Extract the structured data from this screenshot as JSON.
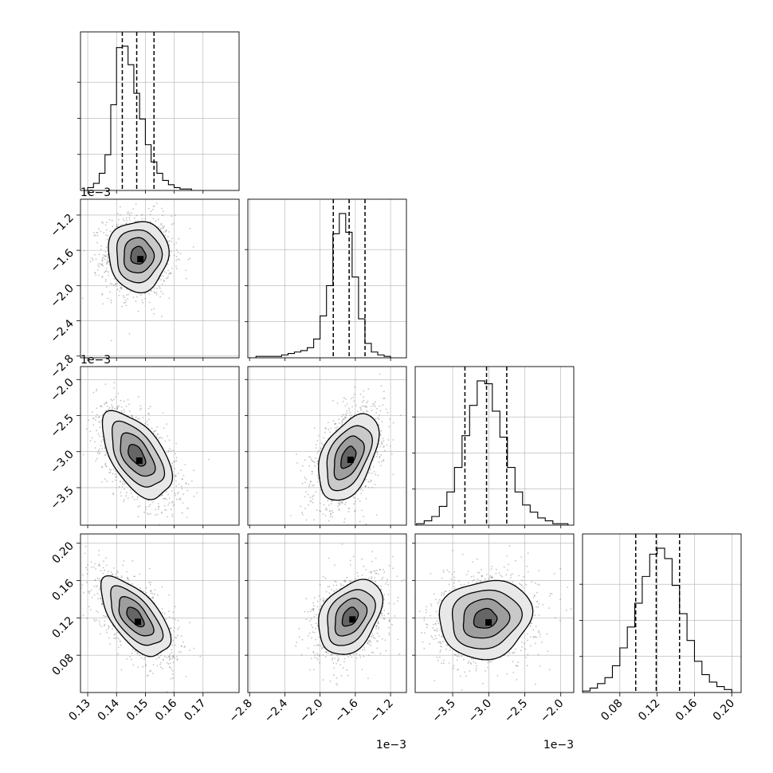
{
  "chart_data": {
    "type": "corner",
    "parameters": [
      "p0",
      "p1",
      "p2",
      "p3"
    ],
    "axis_ranges": {
      "p0": [
        0.1275,
        0.1825
      ],
      "p1": [
        -2.82,
        -1.02
      ],
      "p2": [
        -4.02,
        -1.82
      ],
      "p3": [
        0.04,
        0.21
      ]
    },
    "ticks": {
      "p0": [
        0.13,
        0.14,
        0.15,
        0.16,
        0.17
      ],
      "p1": [
        -2.8,
        -2.4,
        -2.0,
        -1.6,
        -1.2
      ],
      "p2": [
        -3.5,
        -3.0,
        -2.5,
        -2.0
      ],
      "p3": [
        0.08,
        0.12,
        0.16,
        0.2
      ]
    },
    "tick_labels": {
      "p0": [
        "0.13",
        "0.14",
        "0.15",
        "0.16",
        "0.17"
      ],
      "p1": [
        "−2.8",
        "−2.4",
        "−2.0",
        "−1.6",
        "−1.2"
      ],
      "p2": [
        "−3.5",
        "−3.0",
        "−2.5",
        "−2.0"
      ],
      "p3": [
        "0.08",
        "0.12",
        "0.16",
        "0.20"
      ]
    },
    "offset_label": "1e−3",
    "quantiles": {
      "p0": [
        0.142,
        0.147,
        0.153
      ],
      "p1": [
        -1.85,
        -1.67,
        -1.49
      ],
      "p2": [
        -3.33,
        -3.03,
        -2.75
      ],
      "p3": [
        0.097,
        0.119,
        0.144
      ]
    },
    "histograms": [
      {
        "param": "p0",
        "range": [
          0.13,
          0.17
        ],
        "counts": [
          2,
          5,
          12,
          25,
          60,
          100,
          101,
          88,
          68,
          50,
          32,
          20,
          12,
          7,
          4,
          2,
          1,
          1,
          0,
          0
        ]
      },
      {
        "param": "p1",
        "range": [
          -2.8,
          -1.2
        ],
        "counts": [
          0,
          1,
          1,
          1,
          1,
          2,
          3,
          4,
          5,
          7,
          13,
          29,
          50,
          86,
          100,
          87,
          56,
          27,
          10,
          4,
          2,
          1
        ]
      },
      {
        "param": "p2",
        "range": [
          -4.0,
          -1.9
        ],
        "counts": [
          1,
          3,
          6,
          13,
          23,
          40,
          62,
          83,
          100,
          98,
          79,
          61,
          40,
          23,
          14,
          9,
          5,
          3,
          1,
          1
        ]
      },
      {
        "param": "p3",
        "range": [
          0.04,
          0.2
        ],
        "counts": [
          1,
          3,
          6,
          10,
          18,
          30,
          44,
          60,
          78,
          93,
          97,
          90,
          72,
          53,
          35,
          21,
          12,
          7,
          4,
          2
        ]
      }
    ],
    "pairs": [
      {
        "x": "p0",
        "y": "p1",
        "cx": 0.1475,
        "cy": -1.66,
        "sx": 0.0052,
        "sy": 0.2,
        "rho": 0.0
      },
      {
        "x": "p0",
        "y": "p2",
        "cx": 0.147,
        "cy": -3.05,
        "sx": 0.006,
        "sy": 0.3,
        "rho": -0.55
      },
      {
        "x": "p1",
        "y": "p2",
        "cx": -1.68,
        "cy": -3.08,
        "sx": 0.17,
        "sy": 0.3,
        "rho": 0.45
      },
      {
        "x": "p0",
        "y": "p3",
        "cx": 0.1465,
        "cy": 0.121,
        "sx": 0.006,
        "sy": 0.021,
        "rho": -0.62
      },
      {
        "x": "p1",
        "y": "p3",
        "cx": -1.66,
        "cy": 0.121,
        "sx": 0.18,
        "sy": 0.02,
        "rho": 0.35
      },
      {
        "x": "p2",
        "y": "p3",
        "cx": -3.05,
        "cy": 0.119,
        "sx": 0.32,
        "sy": 0.021,
        "rho": 0.1
      }
    ],
    "contour_levels_sigma": [
      0.5,
      1.0,
      1.5,
      2.0
    ],
    "grid": true,
    "colors": {
      "hist": "#000000",
      "density": "#000000",
      "points": "#7a7a7a",
      "grid": "#b0b0b0"
    }
  }
}
